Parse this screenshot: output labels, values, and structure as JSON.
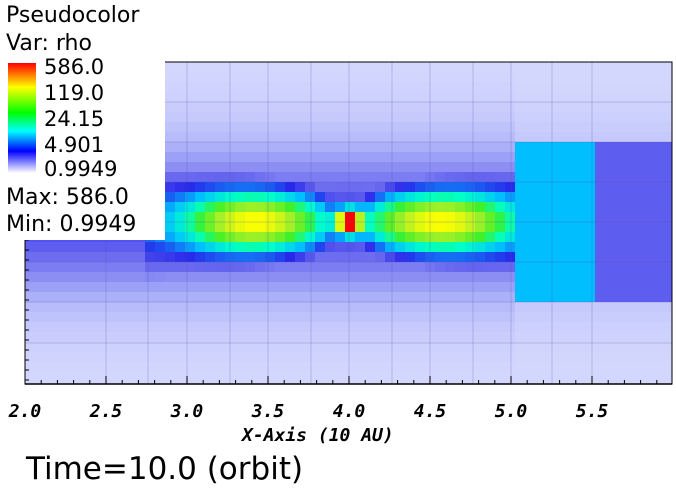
{
  "legend": {
    "plot_type": "Pseudocolor",
    "variable": "Var: rho",
    "max_text": "Max:  586.0",
    "min_text": "Min:  0.9949",
    "colorbar_labels": [
      "586.0",
      "119.0",
      "24.15",
      "4.901",
      "0.9949"
    ],
    "colorbar_colors": [
      "#ff0000",
      "#ffff00",
      "#00ff00",
      "#00ffff",
      "#0000ff",
      "#ffffff"
    ]
  },
  "time_label": "Time=10.0 (orbit)",
  "chart_data": {
    "type": "heatmap",
    "title": "",
    "xlabel": "X-Axis (10 AU)",
    "ylabel": "",
    "xlim": [
      2.0,
      6.0
    ],
    "x_ticks": [
      "2.0",
      "2.5",
      "3.0",
      "3.5",
      "4.0",
      "4.5",
      "5.0",
      "5.5"
    ],
    "x_tick_values": [
      2.0,
      2.5,
      3.0,
      3.5,
      4.0,
      4.5,
      5.0,
      5.5
    ],
    "colormap": "hot-desaturated",
    "value_range": [
      0.9949,
      586.0
    ],
    "peak": {
      "x": 4.0,
      "value": 586.0
    },
    "grid": false
  }
}
